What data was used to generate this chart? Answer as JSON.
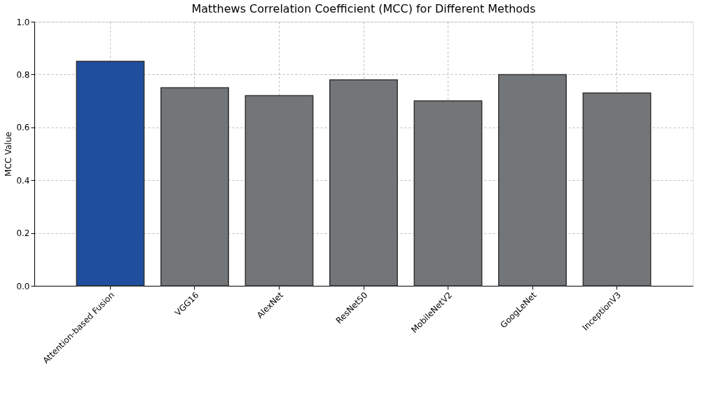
{
  "chart_data": {
    "type": "bar",
    "title": "Matthews Correlation Coefficient (MCC) for Different Methods",
    "ylabel": "MCC Value",
    "categories": [
      "Attention-based Fusion",
      "VGG16",
      "AlexNet",
      "ResNet50",
      "MobileNetV2",
      "GoogLeNet",
      "InceptionV3"
    ],
    "values": [
      0.85,
      0.75,
      0.72,
      0.78,
      0.7,
      0.8,
      0.73
    ],
    "colors": [
      "#1f4e9e",
      "#737679",
      "#737679",
      "#737679",
      "#737679",
      "#737679",
      "#737679"
    ],
    "ylim": [
      0,
      1.0
    ],
    "yticks": [
      {
        "value": 0,
        "label": "0.0"
      },
      {
        "value": 0.2,
        "label": "0.2"
      },
      {
        "value": 0.4,
        "label": "0.4"
      },
      {
        "value": 0.6,
        "label": "0.6"
      },
      {
        "value": 0.8,
        "label": "0.8"
      },
      {
        "value": 1.0,
        "label": "1.0"
      }
    ],
    "grid": true
  }
}
